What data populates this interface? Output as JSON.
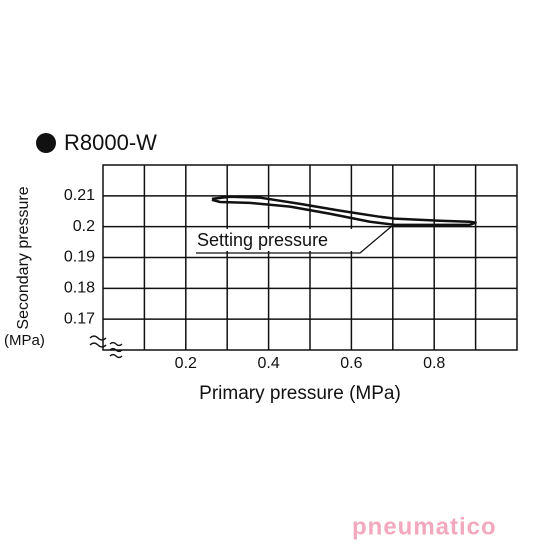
{
  "chart_data": {
    "type": "line",
    "title": "R8000-W",
    "xlabel": "Primary pressure (MPa)",
    "ylabel": "Secondary pressure",
    "ylabel_unit": "(MPa)",
    "x": [
      0.263,
      0.307,
      0.38,
      0.476,
      0.572,
      0.669,
      0.705,
      0.814,
      0.886,
      0.9,
      0.886,
      0.814,
      0.705,
      0.645,
      0.548,
      0.452,
      0.355,
      0.283,
      0.263
    ],
    "series": [
      {
        "color": "#111111",
        "values": [
          0.209,
          0.2097,
          0.2094,
          0.2074,
          0.2052,
          0.2032,
          0.2026,
          0.2019,
          0.2016,
          0.2013,
          0.2006,
          0.2006,
          0.2006,
          0.2016,
          0.2042,
          0.2065,
          0.2077,
          0.208,
          0.2087
        ]
      }
    ],
    "xlim": [
      0,
      1.0
    ],
    "xticks": [
      0.2,
      0.4,
      0.6,
      0.8
    ],
    "minor_xticks": [
      0.1,
      0.3,
      0.5,
      0.7,
      0.9
    ],
    "ylim": [
      0.16,
      0.22
    ],
    "yticks": [
      0.17,
      0.18,
      0.19,
      0.2,
      0.21
    ],
    "grid": true,
    "annotation": "Setting pressure",
    "watermark": "pneumatico"
  }
}
